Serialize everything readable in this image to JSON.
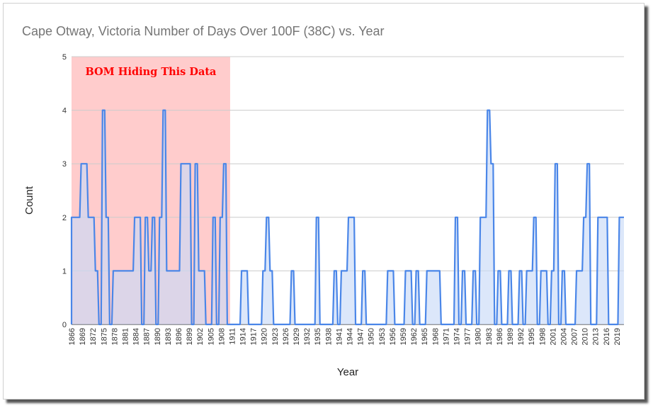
{
  "chart_data": {
    "type": "area",
    "title": "Cape Otway, Victoria   Number of Days Over 100F (38C) vs. Year",
    "xlabel": "Year",
    "ylabel": "Count",
    "xlim": [
      1866,
      2021
    ],
    "ylim": [
      0,
      5
    ],
    "y_ticks": [
      0,
      1,
      2,
      3,
      4,
      5
    ],
    "x_ticks": [
      1866,
      1869,
      1872,
      1875,
      1878,
      1881,
      1884,
      1887,
      1890,
      1893,
      1896,
      1899,
      1902,
      1905,
      1908,
      1911,
      1914,
      1917,
      1920,
      1923,
      1926,
      1929,
      1932,
      1935,
      1938,
      1941,
      1944,
      1947,
      1950,
      1953,
      1956,
      1959,
      1962,
      1965,
      1968,
      1971,
      1974,
      1977,
      1980,
      1983,
      1986,
      1989,
      1992,
      1995,
      1998,
      2001,
      2004,
      2007,
      2010,
      2013,
      2016,
      2019
    ],
    "grid": "horizontal",
    "legend": "none",
    "series": [
      {
        "color": "#4a86e8",
        "fill": "#c9daf8",
        "points": [
          [
            1866,
            2
          ],
          [
            1867,
            2
          ],
          [
            1868,
            2
          ],
          [
            1869,
            3
          ],
          [
            1870,
            3
          ],
          [
            1871,
            2
          ],
          [
            1872,
            2
          ],
          [
            1873,
            1
          ],
          [
            1874,
            0
          ],
          [
            1875,
            4
          ],
          [
            1876,
            2
          ],
          [
            1877,
            0
          ],
          [
            1878,
            1
          ],
          [
            1879,
            1
          ],
          [
            1880,
            1
          ],
          [
            1881,
            1
          ],
          [
            1882,
            1
          ],
          [
            1883,
            1
          ],
          [
            1884,
            2
          ],
          [
            1885,
            2
          ],
          [
            1886,
            0
          ],
          [
            1887,
            2
          ],
          [
            1888,
            1
          ],
          [
            1889,
            2
          ],
          [
            1890,
            0
          ],
          [
            1891,
            2
          ],
          [
            1892,
            4
          ],
          [
            1893,
            1
          ],
          [
            1894,
            1
          ],
          [
            1895,
            1
          ],
          [
            1896,
            1
          ],
          [
            1897,
            3
          ],
          [
            1898,
            3
          ],
          [
            1899,
            3
          ],
          [
            1900,
            0
          ],
          [
            1901,
            3
          ],
          [
            1902,
            1
          ],
          [
            1903,
            1
          ],
          [
            1904,
            0
          ],
          [
            1905,
            0
          ],
          [
            1906,
            2
          ],
          [
            1907,
            0
          ],
          [
            1908,
            2
          ],
          [
            1909,
            3
          ],
          [
            1910,
            0
          ],
          [
            1911,
            0
          ],
          [
            1912,
            0
          ],
          [
            1913,
            0
          ],
          [
            1914,
            1
          ],
          [
            1915,
            1
          ],
          [
            1916,
            0
          ],
          [
            1917,
            0
          ],
          [
            1918,
            0
          ],
          [
            1919,
            0
          ],
          [
            1920,
            1
          ],
          [
            1921,
            2
          ],
          [
            1922,
            1
          ],
          [
            1923,
            0
          ],
          [
            1924,
            0
          ],
          [
            1925,
            0
          ],
          [
            1926,
            0
          ],
          [
            1927,
            0
          ],
          [
            1928,
            1
          ],
          [
            1929,
            0
          ],
          [
            1930,
            0
          ],
          [
            1931,
            0
          ],
          [
            1932,
            0
          ],
          [
            1933,
            0
          ],
          [
            1934,
            0
          ],
          [
            1935,
            2
          ],
          [
            1936,
            0
          ],
          [
            1937,
            0
          ],
          [
            1938,
            0
          ],
          [
            1939,
            0
          ],
          [
            1940,
            1
          ],
          [
            1941,
            0
          ],
          [
            1942,
            1
          ],
          [
            1943,
            1
          ],
          [
            1944,
            2
          ],
          [
            1945,
            2
          ],
          [
            1946,
            0
          ],
          [
            1947,
            0
          ],
          [
            1948,
            1
          ],
          [
            1949,
            0
          ],
          [
            1950,
            0
          ],
          [
            1951,
            0
          ],
          [
            1952,
            0
          ],
          [
            1953,
            0
          ],
          [
            1954,
            0
          ],
          [
            1955,
            1
          ],
          [
            1956,
            1
          ],
          [
            1957,
            0
          ],
          [
            1958,
            0
          ],
          [
            1959,
            0
          ],
          [
            1960,
            1
          ],
          [
            1961,
            1
          ],
          [
            1962,
            0
          ],
          [
            1963,
            1
          ],
          [
            1964,
            0
          ],
          [
            1965,
            0
          ],
          [
            1966,
            1
          ],
          [
            1967,
            1
          ],
          [
            1968,
            1
          ],
          [
            1969,
            1
          ],
          [
            1970,
            0
          ],
          [
            1971,
            0
          ],
          [
            1972,
            0
          ],
          [
            1973,
            0
          ],
          [
            1974,
            2
          ],
          [
            1975,
            0
          ],
          [
            1976,
            1
          ],
          [
            1977,
            0
          ],
          [
            1978,
            0
          ],
          [
            1979,
            1
          ],
          [
            1980,
            0
          ],
          [
            1981,
            2
          ],
          [
            1982,
            2
          ],
          [
            1983,
            4
          ],
          [
            1984,
            3
          ],
          [
            1985,
            0
          ],
          [
            1986,
            1
          ],
          [
            1987,
            0
          ],
          [
            1988,
            0
          ],
          [
            1989,
            1
          ],
          [
            1990,
            0
          ],
          [
            1991,
            0
          ],
          [
            1992,
            1
          ],
          [
            1993,
            0
          ],
          [
            1994,
            1
          ],
          [
            1995,
            1
          ],
          [
            1996,
            2
          ],
          [
            1997,
            0
          ],
          [
            1998,
            1
          ],
          [
            1999,
            1
          ],
          [
            2000,
            0
          ],
          [
            2001,
            1
          ],
          [
            2002,
            3
          ],
          [
            2003,
            0
          ],
          [
            2004,
            1
          ],
          [
            2005,
            0
          ],
          [
            2006,
            0
          ],
          [
            2007,
            0
          ],
          [
            2008,
            1
          ],
          [
            2009,
            1
          ],
          [
            2010,
            2
          ],
          [
            2011,
            3
          ],
          [
            2012,
            0
          ],
          [
            2013,
            0
          ],
          [
            2014,
            2
          ],
          [
            2015,
            2
          ],
          [
            2016,
            2
          ],
          [
            2017,
            0
          ],
          [
            2018,
            0
          ],
          [
            2019,
            0
          ],
          [
            2020,
            2
          ],
          [
            2021,
            2
          ]
        ]
      }
    ],
    "annotations": [
      {
        "text": "BOM Hiding This Data",
        "x_range": [
          1866,
          1910.5
        ],
        "fill": "#ffcccc",
        "text_color": "#ff0000"
      }
    ]
  }
}
